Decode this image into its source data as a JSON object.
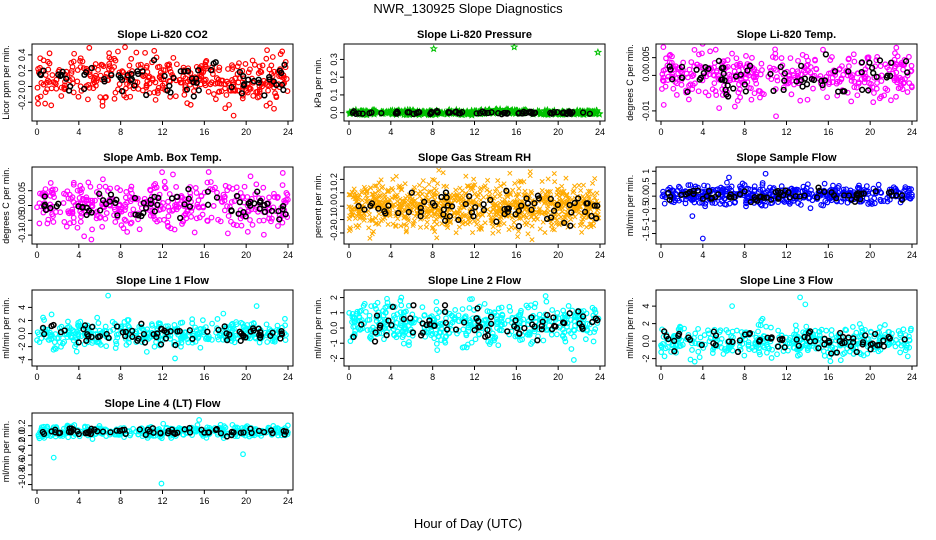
{
  "figure": {
    "title": "NWR_130925  Slope Diagnostics",
    "x_axis_label": "Hour of Day (UTC)"
  },
  "chart_data": [
    {
      "type": "scatter",
      "title": "Slope Li-820 CO2",
      "ylabel": "Licor ppm per min.",
      "xlim": [
        0,
        24
      ],
      "ylim": [
        -0.4,
        0.5
      ],
      "xticks": [
        0,
        4,
        8,
        12,
        16,
        20,
        24
      ],
      "yticks": [
        -0.2,
        0.0,
        0.2,
        0.4
      ],
      "color": "#ff0000",
      "glyph": "circle",
      "center": 0.1,
      "spread": 0.15,
      "n": 380,
      "n_black": 70,
      "outliers": [
        [
          1.2,
          0.42
        ],
        [
          5.0,
          0.49
        ],
        [
          9.5,
          0.43
        ],
        [
          18.8,
          -0.37
        ],
        [
          22.0,
          0.46
        ]
      ]
    },
    {
      "type": "scatter",
      "title": "Slope Li-820 Pressure",
      "ylabel": "kPa per min.",
      "xlim": [
        0,
        24
      ],
      "ylim": [
        -0.03,
        0.37
      ],
      "xticks": [
        0,
        4,
        8,
        12,
        16,
        20,
        24
      ],
      "yticks": [
        0.0,
        0.1,
        0.2,
        0.3
      ],
      "color": "#00c000",
      "glyph": "star",
      "center": 0.0,
      "spread": 0.006,
      "n": 380,
      "n_black": 70,
      "outliers": [
        [
          8.1,
          0.36
        ],
        [
          15.8,
          0.37
        ],
        [
          23.8,
          0.34
        ]
      ]
    },
    {
      "type": "scatter",
      "title": "Slope Li-820 Temp.",
      "ylabel": "degrees C per min.",
      "xlim": [
        0,
        24
      ],
      "ylim": [
        -0.012,
        0.008
      ],
      "xticks": [
        0,
        4,
        8,
        12,
        16,
        20,
        24
      ],
      "yticks": [
        -0.01,
        0.0,
        0.005
      ],
      "color": "#ff00ff",
      "glyph": "circle",
      "center": 0.0,
      "spread": 0.0035,
      "n": 380,
      "n_black": 70,
      "outliers": [
        [
          3.2,
          0.0072
        ],
        [
          11.0,
          -0.0115
        ],
        [
          22.5,
          0.0078
        ]
      ]
    },
    {
      "type": "scatter",
      "title": "Slope Amb. Box Temp.",
      "ylabel": "degrees C per min.",
      "xlim": [
        0,
        24
      ],
      "ylim": [
        -0.12,
        0.12
      ],
      "xticks": [
        0,
        4,
        8,
        12,
        16,
        20,
        24
      ],
      "yticks": [
        -0.1,
        -0.05,
        0.0,
        0.05
      ],
      "color": "#ff00ff",
      "glyph": "circle",
      "center": 0.0,
      "spread": 0.04,
      "n": 380,
      "n_black": 70,
      "outliers": [
        [
          5.2,
          -0.115
        ],
        [
          13.0,
          0.105
        ],
        [
          23.5,
          0.11
        ]
      ]
    },
    {
      "type": "scatter",
      "title": "Slope Gas Stream RH",
      "ylabel": "percent per min.",
      "xlim": [
        0,
        24
      ],
      "ylim": [
        -0.26,
        0.27
      ],
      "xticks": [
        0,
        4,
        8,
        12,
        16,
        20,
        24
      ],
      "yticks": [
        -0.2,
        -0.1,
        0.0,
        0.1,
        0.2
      ],
      "color": "#ffaa00",
      "glyph": "cross",
      "center": 0.0,
      "spread": 0.09,
      "n": 900,
      "n_black": 70,
      "outliers": [
        [
          2.0,
          -0.24
        ],
        [
          9.0,
          0.25
        ],
        [
          17.5,
          -0.25
        ]
      ]
    },
    {
      "type": "scatter",
      "title": "Slope Sample Flow",
      "ylabel": "ml/min per min.",
      "xlim": [
        0,
        24
      ],
      "ylim": [
        -1.8,
        1.05
      ],
      "xticks": [
        0,
        4,
        8,
        12,
        16,
        20,
        24
      ],
      "yticks": [
        -1.5,
        -1.0,
        -0.5,
        0.0,
        0.5,
        1.0
      ],
      "color": "#0000ff",
      "glyph": "circle",
      "center": 0.05,
      "spread": 0.2,
      "n": 420,
      "n_black": 70,
      "outliers": [
        [
          4.0,
          -1.7
        ],
        [
          3.0,
          -0.8
        ],
        [
          10.0,
          0.9
        ],
        [
          6.5,
          0.75
        ]
      ]
    },
    {
      "type": "scatter",
      "title": "Slope Line 1 Flow",
      "ylabel": "ml/min per min.",
      "xlim": [
        0,
        24
      ],
      "ylim": [
        -4.5,
        6.2
      ],
      "xticks": [
        0,
        4,
        8,
        12,
        16,
        20,
        24
      ],
      "yticks": [
        -4,
        -2,
        0,
        2,
        4
      ],
      "color": "#00ffff",
      "glyph": "circle",
      "center": 0.0,
      "spread": 1.0,
      "n": 380,
      "n_black": 70,
      "outliers": [
        [
          6.8,
          5.8
        ],
        [
          10.5,
          -2.8
        ],
        [
          13.2,
          -3.8
        ],
        [
          21.0,
          4.2
        ]
      ]
    },
    {
      "type": "scatter",
      "title": "Slope Line 2 Flow",
      "ylabel": "ml/min per min.",
      "xlim": [
        0,
        24
      ],
      "ylim": [
        -2.3,
        2.3
      ],
      "xticks": [
        0,
        4,
        8,
        12,
        16,
        20,
        24
      ],
      "yticks": [
        -2,
        -1,
        0,
        1,
        2
      ],
      "color": "#00ffff",
      "glyph": "circle",
      "center": 0.3,
      "spread": 0.7,
      "n": 450,
      "n_black": 70,
      "outliers": [
        [
          5.0,
          2.0
        ],
        [
          18.8,
          2.1
        ],
        [
          21.5,
          -2.1
        ]
      ]
    },
    {
      "type": "scatter",
      "title": "Slope Line 3 Flow",
      "ylabel": "ml/min per min.",
      "xlim": [
        0,
        24
      ],
      "ylim": [
        -2.5,
        5.5
      ],
      "xticks": [
        0,
        4,
        8,
        12,
        16,
        20,
        24
      ],
      "yticks": [
        -2,
        0,
        2,
        4
      ],
      "color": "#00ffff",
      "glyph": "circle",
      "center": 0.0,
      "spread": 0.9,
      "n": 380,
      "n_black": 70,
      "outliers": [
        [
          6.8,
          4.0
        ],
        [
          13.3,
          5.0
        ],
        [
          13.8,
          4.2
        ],
        [
          16.2,
          -2.3
        ]
      ]
    },
    {
      "type": "scatter",
      "title": "Slope Line 4 (LT) Flow",
      "ylabel": "ml/min per min.",
      "xlim": [
        0,
        24
      ],
      "ylim": [
        -1.05,
        0.4
      ],
      "xticks": [
        0,
        4,
        8,
        12,
        16,
        20,
        24
      ],
      "yticks": [
        -1.0,
        -0.8,
        -0.6,
        -0.4,
        -0.2,
        0.0,
        0.2
      ],
      "color": "#00ffff",
      "glyph": "circle",
      "center": 0.08,
      "spread": 0.06,
      "n": 380,
      "n_black": 70,
      "outliers": [
        [
          1.6,
          -0.45
        ],
        [
          11.9,
          -0.98
        ],
        [
          15.5,
          0.32
        ],
        [
          19.7,
          -0.38
        ]
      ]
    }
  ]
}
